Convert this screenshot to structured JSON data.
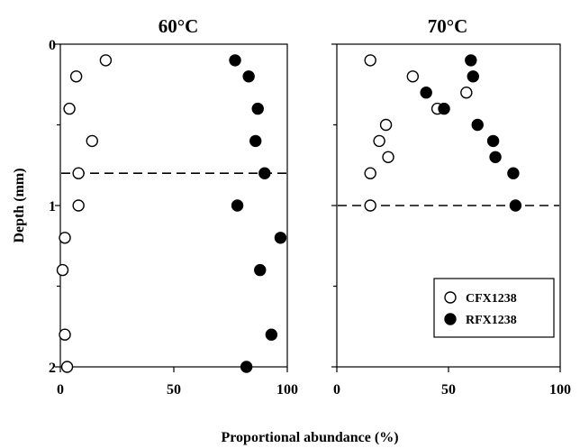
{
  "chart_data": {
    "type": "scatter",
    "xlabel": "Proportional abundance (%)",
    "ylabel": "Depth (mm)",
    "panels": [
      {
        "title": "60°C",
        "xlim": [
          0,
          100
        ],
        "ylim": [
          0,
          2
        ],
        "y_inverted": true,
        "x_ticks": [
          "0",
          "50",
          "100"
        ],
        "y_ticks": [
          "0",
          "1",
          "2"
        ],
        "dashed_line_depth": 0.8,
        "series": [
          {
            "name": "CFX1238",
            "marker": "open-circle",
            "points": [
              {
                "x": 20,
                "y": 0.1
              },
              {
                "x": 7,
                "y": 0.2
              },
              {
                "x": 4,
                "y": 0.4
              },
              {
                "x": 14,
                "y": 0.6
              },
              {
                "x": 8,
                "y": 0.8
              },
              {
                "x": 8,
                "y": 1.0
              },
              {
                "x": 2,
                "y": 1.2
              },
              {
                "x": 1,
                "y": 1.4
              },
              {
                "x": 2,
                "y": 1.8
              },
              {
                "x": 3,
                "y": 2.0
              }
            ]
          },
          {
            "name": "RFX1238",
            "marker": "filled-circle",
            "points": [
              {
                "x": 77,
                "y": 0.1
              },
              {
                "x": 83,
                "y": 0.2
              },
              {
                "x": 87,
                "y": 0.4
              },
              {
                "x": 86,
                "y": 0.6
              },
              {
                "x": 90,
                "y": 0.8
              },
              {
                "x": 78,
                "y": 1.0
              },
              {
                "x": 97,
                "y": 1.2
              },
              {
                "x": 88,
                "y": 1.4
              },
              {
                "x": 93,
                "y": 1.8
              },
              {
                "x": 82,
                "y": 2.0
              }
            ]
          }
        ]
      },
      {
        "title": "70°C",
        "xlim": [
          0,
          100
        ],
        "ylim": [
          0,
          2
        ],
        "y_inverted": true,
        "x_ticks": [
          "0",
          "50",
          "100"
        ],
        "y_ticks": [],
        "dashed_line_depth": 1.0,
        "legend": {
          "location": "bottom-right"
        },
        "series": [
          {
            "name": "CFX1238",
            "marker": "open-circle",
            "points": [
              {
                "x": 15,
                "y": 0.1
              },
              {
                "x": 34,
                "y": 0.2
              },
              {
                "x": 45,
                "y": 0.4
              },
              {
                "x": 22,
                "y": 0.5
              },
              {
                "x": 19,
                "y": 0.6
              },
              {
                "x": 23,
                "y": 0.7
              },
              {
                "x": 15,
                "y": 0.8
              },
              {
                "x": 15,
                "y": 1.0
              },
              {
                "x": 58,
                "y": 0.3
              }
            ]
          },
          {
            "name": "RFX1238",
            "marker": "filled-circle",
            "points": [
              {
                "x": 60,
                "y": 0.1
              },
              {
                "x": 61,
                "y": 0.2
              },
              {
                "x": 40,
                "y": 0.3
              },
              {
                "x": 48,
                "y": 0.4
              },
              {
                "x": 63,
                "y": 0.5
              },
              {
                "x": 70,
                "y": 0.6
              },
              {
                "x": 71,
                "y": 0.7
              },
              {
                "x": 79,
                "y": 0.8
              },
              {
                "x": 80,
                "y": 1.0
              }
            ]
          }
        ]
      }
    ]
  }
}
